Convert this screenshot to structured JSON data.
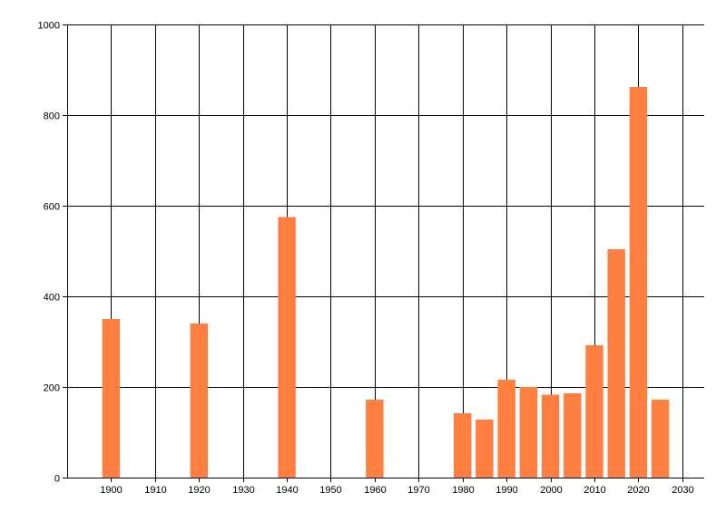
{
  "chart_data": {
    "type": "bar",
    "title": "",
    "xlabel": "",
    "ylabel": "",
    "x": [
      1900,
      1920,
      1940,
      1960,
      1980,
      1985,
      1990,
      1995,
      2000,
      2005,
      2010,
      2015,
      2020,
      2025
    ],
    "values": [
      350,
      340,
      575,
      172,
      142,
      128,
      216,
      200,
      183,
      186,
      292,
      504,
      862,
      172
    ],
    "xlim": [
      1890,
      2035
    ],
    "ylim": [
      0,
      1000
    ],
    "x_ticks": [
      1900,
      1910,
      1920,
      1930,
      1940,
      1950,
      1960,
      1970,
      1980,
      1990,
      2000,
      2010,
      2020,
      2030
    ],
    "y_ticks": [
      0,
      200,
      400,
      600,
      800,
      1000
    ],
    "bar_width_years": 4,
    "grid": true,
    "legend": "none",
    "colors": {
      "bar": "#ff7f40",
      "grid": "#000000",
      "axis": "#000000"
    }
  }
}
